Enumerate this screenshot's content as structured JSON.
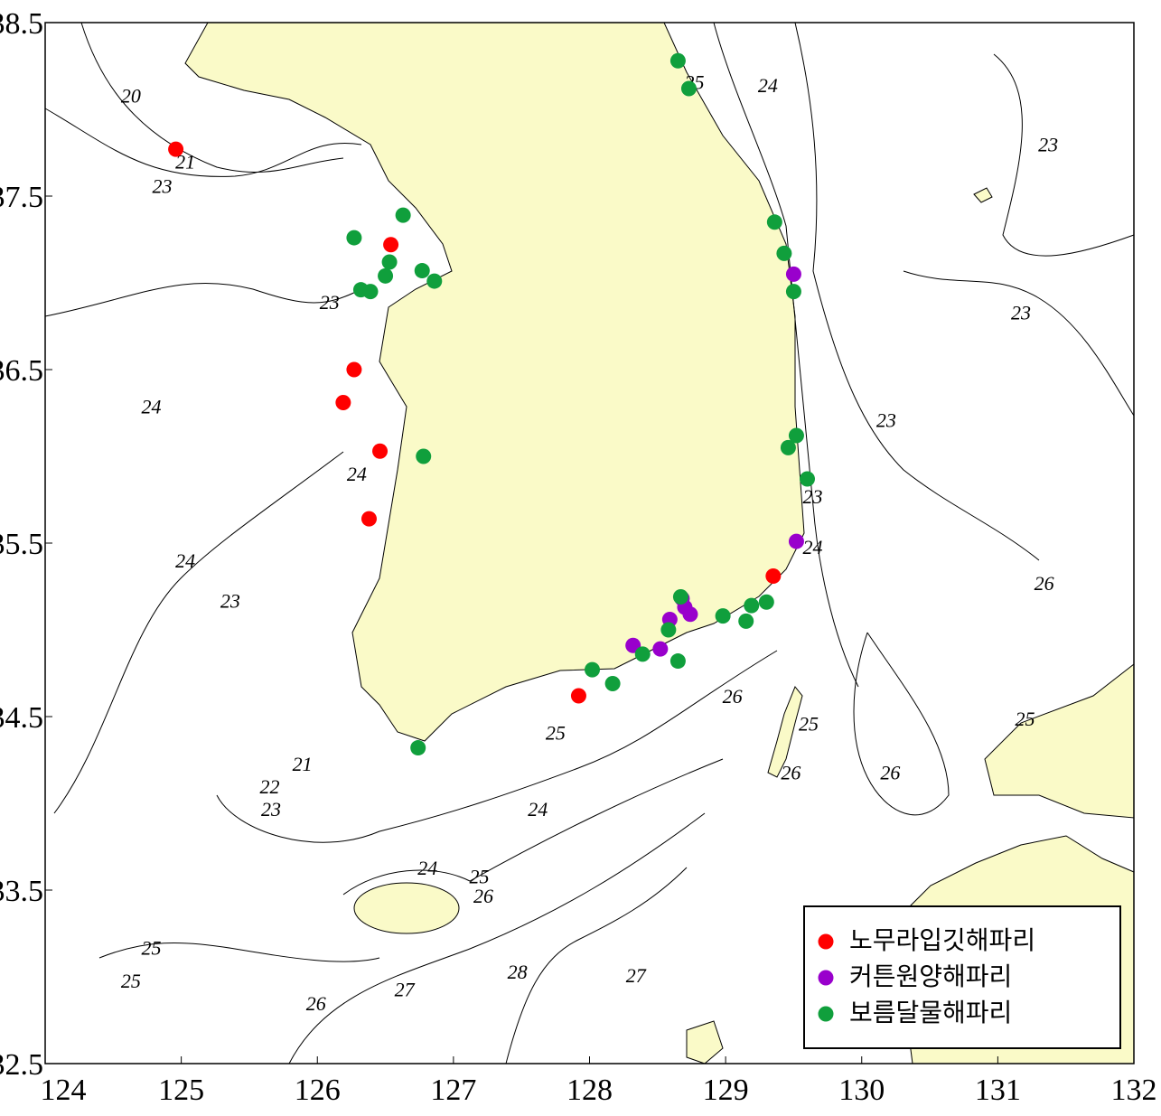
{
  "chart_data": {
    "type": "scatter",
    "xlim": [
      124,
      132
    ],
    "ylim": [
      32.5,
      38.5
    ],
    "xticks": [
      124,
      125,
      126,
      127,
      128,
      129,
      130,
      131,
      132
    ],
    "yticks": [
      32.5,
      33.5,
      34.5,
      35.5,
      36.5,
      37.5,
      38.5
    ],
    "legend": "lower right",
    "series": [
      {
        "name": "노무라입깃해파리",
        "color": "#ff0000",
        "x": [
          124.96,
          126.54,
          126.27,
          126.19,
          126.46,
          126.38,
          127.92,
          129.35
        ],
        "values": [
          37.77,
          37.22,
          36.5,
          36.31,
          36.03,
          35.64,
          34.62,
          35.31
        ]
      },
      {
        "name": "커튼원양해파리",
        "color": "#9900cc",
        "x": [
          129.5,
          128.32,
          128.52,
          128.59,
          128.68,
          128.7,
          128.74,
          129.52
        ],
        "values": [
          37.05,
          34.91,
          34.89,
          35.06,
          35.18,
          35.13,
          35.09,
          35.51
        ]
      },
      {
        "name": "보름달물해파리",
        "color": "#109f3c",
        "x": [
          128.65,
          128.73,
          126.63,
          126.27,
          126.53,
          126.77,
          126.5,
          126.86,
          126.32,
          126.39,
          129.36,
          129.43,
          129.5,
          126.78,
          129.52,
          129.46,
          129.6,
          128.67,
          128.58,
          128.39,
          128.65,
          128.02,
          128.17,
          128.98,
          129.15,
          129.19,
          129.3,
          126.74
        ],
        "values": [
          38.28,
          38.12,
          37.39,
          37.26,
          37.12,
          37.07,
          37.04,
          37.01,
          36.96,
          36.95,
          37.35,
          37.17,
          36.95,
          36.0,
          36.12,
          36.05,
          35.87,
          35.19,
          35.0,
          34.86,
          34.82,
          34.77,
          34.69,
          35.08,
          35.05,
          35.14,
          35.16,
          34.32
        ]
      }
    ],
    "contour_labels": [
      {
        "value": 25,
        "x": 128.77,
        "y": 38.16
      },
      {
        "value": 24,
        "x": 129.31,
        "y": 38.14
      },
      {
        "value": 23,
        "x": 131.37,
        "y": 37.8
      },
      {
        "value": 23,
        "x": 131.17,
        "y": 36.83
      },
      {
        "value": 23,
        "x": 130.18,
        "y": 36.21
      },
      {
        "value": 23,
        "x": 129.64,
        "y": 35.77
      },
      {
        "value": 24,
        "x": 129.64,
        "y": 35.48
      },
      {
        "value": 26,
        "x": 131.34,
        "y": 35.27
      },
      {
        "value": 26,
        "x": 129.05,
        "y": 34.62
      },
      {
        "value": 25,
        "x": 129.61,
        "y": 34.46
      },
      {
        "value": 26,
        "x": 129.48,
        "y": 34.18
      },
      {
        "value": 26,
        "x": 130.21,
        "y": 34.18
      },
      {
        "value": 25,
        "x": 131.2,
        "y": 34.49
      },
      {
        "value": 20,
        "x": 124.63,
        "y": 38.08
      },
      {
        "value": 21,
        "x": 125.03,
        "y": 37.7
      },
      {
        "value": 23,
        "x": 124.86,
        "y": 37.56
      },
      {
        "value": 23,
        "x": 126.09,
        "y": 36.89
      },
      {
        "value": 24,
        "x": 124.78,
        "y": 36.29
      },
      {
        "value": 24,
        "x": 126.29,
        "y": 35.9
      },
      {
        "value": 24,
        "x": 125.03,
        "y": 35.4
      },
      {
        "value": 23,
        "x": 125.36,
        "y": 35.17
      },
      {
        "value": 21,
        "x": 125.89,
        "y": 34.23
      },
      {
        "value": 22,
        "x": 125.65,
        "y": 34.1
      },
      {
        "value": 23,
        "x": 125.66,
        "y": 33.97
      },
      {
        "value": 25,
        "x": 127.75,
        "y": 34.41
      },
      {
        "value": 24,
        "x": 127.62,
        "y": 33.97
      },
      {
        "value": 24,
        "x": 126.81,
        "y": 33.63
      },
      {
        "value": 25,
        "x": 127.19,
        "y": 33.58
      },
      {
        "value": 26,
        "x": 127.22,
        "y": 33.47
      },
      {
        "value": 25,
        "x": 124.78,
        "y": 33.17
      },
      {
        "value": 25,
        "x": 124.63,
        "y": 32.98
      },
      {
        "value": 26,
        "x": 125.99,
        "y": 32.85
      },
      {
        "value": 27,
        "x": 126.64,
        "y": 32.93
      },
      {
        "value": 28,
        "x": 127.47,
        "y": 33.03
      },
      {
        "value": 27,
        "x": 128.34,
        "y": 33.01
      }
    ]
  }
}
